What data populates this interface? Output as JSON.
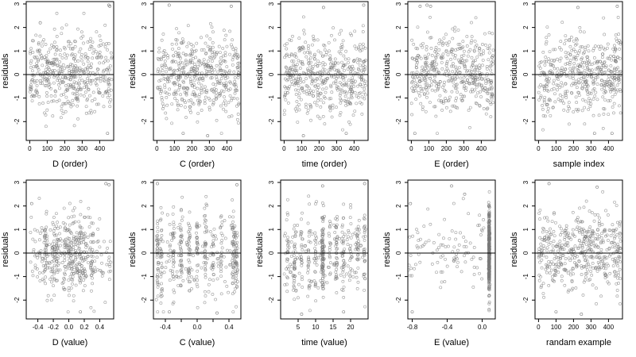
{
  "figure": {
    "ylabel": "residuals",
    "colors": {
      "points": "#7a7a7a",
      "zero_line": "#000000",
      "frame": "#000000",
      "background": "#ffffff"
    }
  },
  "chart_data": [
    {
      "type": "scatter",
      "xlabel": "D (order)",
      "ylabel": "residuals",
      "xlim": [
        -20,
        480
      ],
      "ylim": [
        -2.8,
        3.1
      ],
      "x_ticks": [
        0,
        100,
        200,
        300,
        400
      ],
      "y_ticks": [
        -2,
        -1,
        0,
        1,
        2,
        3
      ],
      "x_tick_labels": [
        "0",
        "100",
        "200",
        "300",
        "400"
      ],
      "y_tick_labels": [
        "-2",
        "-1",
        "0",
        "1",
        "2",
        "3"
      ],
      "x_distribution": {
        "kind": "uniform",
        "min": 1,
        "max": 470
      },
      "n_points": 470,
      "seed": 11,
      "notable_points": [
        [
          452,
          2.95
        ],
        [
          458,
          2.9
        ],
        [
          60,
          2.2
        ],
        [
          445,
          -2.5
        ]
      ],
      "reference_line": 0
    },
    {
      "type": "scatter",
      "xlabel": "C (order)",
      "ylabel": "residuals",
      "xlim": [
        -20,
        480
      ],
      "ylim": [
        -2.8,
        3.1
      ],
      "x_ticks": [
        0,
        100,
        200,
        300,
        400
      ],
      "y_ticks": [
        -2,
        -1,
        0,
        1,
        2,
        3
      ],
      "x_tick_labels": [
        "0",
        "100",
        "200",
        "300",
        "400"
      ],
      "y_tick_labels": [
        "-2",
        "-1",
        "0",
        "1",
        "2",
        "3"
      ],
      "x_distribution": {
        "kind": "uniform",
        "min": 1,
        "max": 470
      },
      "n_points": 470,
      "seed": 12,
      "notable_points": [
        [
          70,
          2.95
        ],
        [
          425,
          2.9
        ],
        [
          150,
          -2.5
        ],
        [
          290,
          -2.6
        ]
      ],
      "reference_line": 0
    },
    {
      "type": "scatter",
      "xlabel": "time (order)",
      "ylabel": "residuals",
      "xlim": [
        -20,
        480
      ],
      "ylim": [
        -2.8,
        3.1
      ],
      "x_ticks": [
        0,
        100,
        200,
        300,
        400
      ],
      "y_ticks": [
        -2,
        -1,
        0,
        1,
        2,
        3
      ],
      "x_tick_labels": [
        "0",
        "100",
        "200",
        "300",
        "400"
      ],
      "y_tick_labels": [
        "-2",
        "-1",
        "0",
        "1",
        "2",
        "3"
      ],
      "x_distribution": {
        "kind": "uniform",
        "min": 1,
        "max": 470
      },
      "n_points": 470,
      "seed": 13,
      "notable_points": [
        [
          455,
          2.95
        ],
        [
          225,
          2.85
        ],
        [
          355,
          -2.5
        ],
        [
          110,
          -2.6
        ]
      ],
      "reference_line": 0
    },
    {
      "type": "scatter",
      "xlabel": "E (order)",
      "ylabel": "residuals",
      "xlim": [
        -20,
        480
      ],
      "ylim": [
        -2.8,
        3.1
      ],
      "x_ticks": [
        0,
        100,
        200,
        300,
        400
      ],
      "y_ticks": [
        -2,
        -1,
        0,
        1,
        2,
        3
      ],
      "x_tick_labels": [
        "0",
        "100",
        "200",
        "300",
        "400"
      ],
      "y_tick_labels": [
        "-2",
        "-1",
        "0",
        "1",
        "2",
        "3"
      ],
      "x_distribution": {
        "kind": "uniform",
        "min": 1,
        "max": 470
      },
      "n_points": 470,
      "seed": 14,
      "notable_points": [
        [
          90,
          2.95
        ],
        [
          110,
          2.9
        ],
        [
          50,
          2.9
        ],
        [
          20,
          -2.5
        ]
      ],
      "reference_line": 0
    },
    {
      "type": "scatter",
      "xlabel": "sample index",
      "ylabel": "residuals",
      "xlim": [
        -20,
        480
      ],
      "ylim": [
        -2.8,
        3.1
      ],
      "x_ticks": [
        0,
        100,
        200,
        300,
        400
      ],
      "y_ticks": [
        -2,
        -1,
        0,
        1,
        2,
        3
      ],
      "x_tick_labels": [
        "0",
        "100",
        "200",
        "300",
        "400"
      ],
      "y_tick_labels": [
        "-2",
        "-1",
        "0",
        "1",
        "2",
        "3"
      ],
      "x_distribution": {
        "kind": "uniform",
        "min": 1,
        "max": 470
      },
      "n_points": 470,
      "seed": 15,
      "notable_points": [
        [
          225,
          2.85
        ],
        [
          450,
          2.9
        ],
        [
          420,
          -2.5
        ],
        [
          320,
          -2.5
        ]
      ],
      "reference_line": 0
    },
    {
      "type": "scatter",
      "xlabel": "D (value)",
      "ylabel": "residuals",
      "xlim": [
        -0.55,
        0.58
      ],
      "ylim": [
        -2.8,
        3.1
      ],
      "x_ticks": [
        -0.4,
        -0.2,
        0.0,
        0.2,
        0.4
      ],
      "y_ticks": [
        -2,
        -1,
        0,
        1,
        2,
        3
      ],
      "x_tick_labels": [
        "-0.4",
        "-0.2",
        "0.0",
        "0.2",
        "0.4"
      ],
      "y_tick_labels": [
        "-2",
        "-1",
        "0",
        "1",
        "2",
        "3"
      ],
      "x_distribution": {
        "kind": "mixture",
        "min": -0.5,
        "max": 0.55,
        "cluster_centers": [
          -0.3,
          -0.2,
          -0.15,
          -0.05,
          0.0,
          0.05,
          0.1,
          0.15,
          0.2,
          0.3
        ],
        "cluster_weight": 0.6,
        "cluster_spread": 0.012
      },
      "n_points": 470,
      "seed": 16,
      "notable_points": [
        [
          0.48,
          2.95
        ],
        [
          0.52,
          2.9
        ],
        [
          -0.48,
          2.1
        ],
        [
          0.15,
          -2.5
        ]
      ],
      "reference_line": 0
    },
    {
      "type": "scatter",
      "xlabel": "C (value)",
      "ylabel": "residuals",
      "xlim": [
        -0.55,
        0.55
      ],
      "ylim": [
        -2.8,
        3.1
      ],
      "x_ticks": [
        -0.4,
        -0.2,
        0.0,
        0.2,
        0.4
      ],
      "y_ticks": [
        -2,
        -1,
        0,
        1,
        2,
        3
      ],
      "x_tick_labels": [
        "-0.4",
        "",
        "0.0",
        "",
        "0.4"
      ],
      "y_tick_labels": [
        "-2",
        "-1",
        "0",
        "1",
        "2",
        "3"
      ],
      "x_distribution": {
        "kind": "mixture",
        "min": -0.5,
        "max": 0.5,
        "cluster_centers": [
          -0.5,
          -0.45,
          -0.3,
          -0.2,
          -0.1,
          0.0,
          0.1,
          0.2,
          0.3,
          0.45,
          0.48,
          0.5
        ],
        "cluster_weight": 0.75,
        "cluster_spread": 0.006
      },
      "n_points": 470,
      "seed": 17,
      "notable_points": [
        [
          -0.5,
          2.95
        ],
        [
          0.5,
          2.9
        ],
        [
          -0.35,
          -2.5
        ],
        [
          0.25,
          -2.55
        ]
      ],
      "reference_line": 0
    },
    {
      "type": "scatter",
      "xlabel": "time (value)",
      "ylabel": "residuals",
      "xlim": [
        0,
        25
      ],
      "ylim": [
        -2.8,
        3.1
      ],
      "x_ticks": [
        5,
        10,
        15,
        20
      ],
      "y_ticks": [
        -2,
        -1,
        0,
        1,
        2,
        3
      ],
      "x_tick_labels": [
        "5",
        "10",
        "15",
        "20"
      ],
      "y_tick_labels": [
        "-2",
        "-1",
        "0",
        "1",
        "2",
        "3"
      ],
      "x_distribution": {
        "kind": "mixture",
        "min": 1,
        "max": 24,
        "cluster_centers": [
          2,
          4,
          6,
          8,
          10,
          12,
          14,
          16,
          18,
          20,
          22,
          24
        ],
        "cluster_weight": 0.7,
        "cluster_spread": 0.15,
        "center_boost": 12
      },
      "n_points": 470,
      "seed": 18,
      "notable_points": [
        [
          24,
          2.95
        ],
        [
          12,
          2.85
        ],
        [
          18,
          -2.5
        ],
        [
          6,
          -2.6
        ]
      ],
      "reference_line": 0
    },
    {
      "type": "scatter",
      "xlabel": "E (value)",
      "ylabel": "residuals",
      "xlim": [
        -0.85,
        0.15
      ],
      "ylim": [
        -2.8,
        3.1
      ],
      "x_ticks": [
        -0.8,
        -0.4,
        0.0
      ],
      "y_ticks": [
        -2,
        -1,
        0,
        1,
        2,
        3
      ],
      "x_tick_labels": [
        "-0.8",
        "-0.4",
        "0.0"
      ],
      "y_tick_labels": [
        "-2",
        "-1",
        "0",
        "1",
        "2",
        "3"
      ],
      "x_distribution": {
        "kind": "mixture",
        "min": -0.85,
        "max": 0.08,
        "cluster_centers": [
          0.08
        ],
        "cluster_weight": 0.82,
        "cluster_spread": 0.003
      },
      "n_points": 470,
      "seed": 19,
      "notable_points": [
        [
          -0.35,
          2.85
        ],
        [
          -0.2,
          2.5
        ],
        [
          -0.82,
          2.1
        ],
        [
          -0.8,
          -2.5
        ]
      ],
      "reference_line": 0
    },
    {
      "type": "scatter",
      "xlabel": "randam example",
      "ylabel": "residuals",
      "xlim": [
        -20,
        480
      ],
      "ylim": [
        -2.8,
        3.1
      ],
      "x_ticks": [
        0,
        100,
        200,
        300,
        400
      ],
      "y_ticks": [
        -2,
        -1,
        0,
        1,
        2,
        3
      ],
      "x_tick_labels": [
        "0",
        "100",
        "200",
        "300",
        "400"
      ],
      "y_tick_labels": [
        "-2",
        "-1",
        "0",
        "1",
        "2",
        "3"
      ],
      "x_distribution": {
        "kind": "uniform",
        "min": 1,
        "max": 470
      },
      "n_points": 470,
      "seed": 20,
      "notable_points": [
        [
          60,
          2.95
        ],
        [
          335,
          2.8
        ],
        [
          100,
          -2.5
        ],
        [
          245,
          -2.6
        ]
      ],
      "reference_line": 0
    }
  ]
}
